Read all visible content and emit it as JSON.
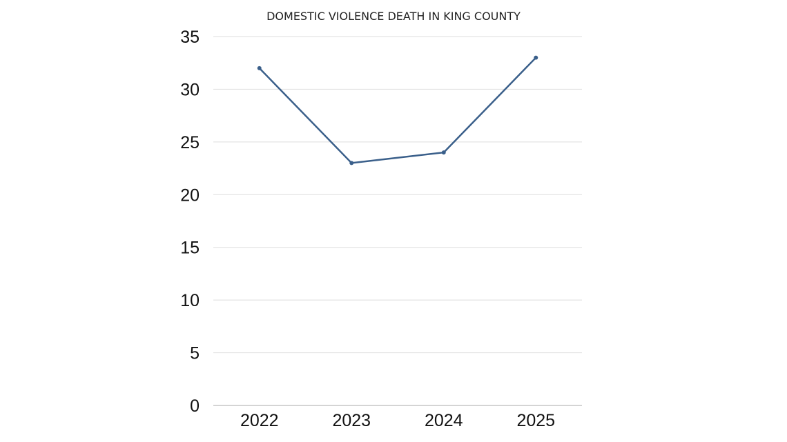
{
  "chart_data": {
    "type": "line",
    "title": "DOMESTIC VIOLENCE DEATH IN KING COUNTY",
    "xlabel": "",
    "ylabel": "",
    "categories": [
      "2022",
      "2023",
      "2024",
      "2025"
    ],
    "series": [
      {
        "values": [
          32,
          23,
          24,
          33
        ],
        "color": "#3a5f8a"
      }
    ],
    "ylim": [
      0,
      35
    ],
    "yticks": [
      0,
      5,
      10,
      15,
      20,
      25,
      30,
      35
    ],
    "grid": true,
    "markers": true
  }
}
